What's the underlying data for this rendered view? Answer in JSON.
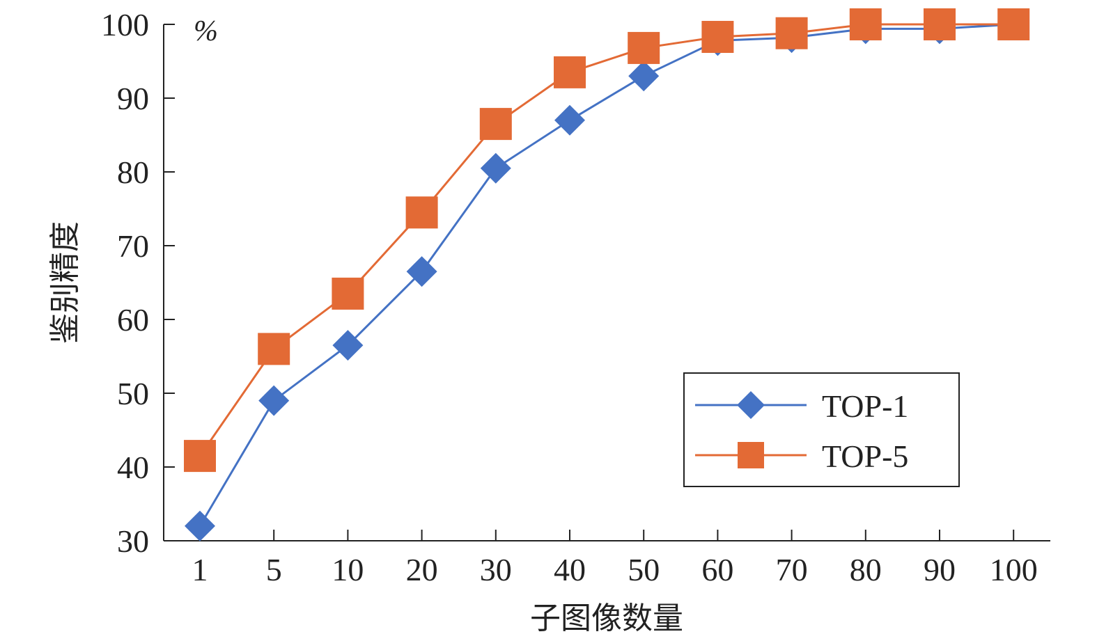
{
  "chart_data": {
    "type": "line",
    "categories": [
      "1",
      "5",
      "10",
      "20",
      "30",
      "40",
      "50",
      "60",
      "70",
      "80",
      "90",
      "100"
    ],
    "series": [
      {
        "name": "TOP-1",
        "values": [
          32,
          49,
          56.5,
          66.5,
          80.5,
          87,
          93,
          97.8,
          98.2,
          99.4,
          99.4,
          100
        ],
        "color": "#4472C4",
        "marker": "diamond"
      },
      {
        "name": "TOP-5",
        "values": [
          41.5,
          56,
          63.5,
          74.5,
          86.5,
          93.5,
          96.8,
          98.3,
          98.8,
          100,
          100,
          100
        ],
        "color": "#E36A35",
        "marker": "square"
      }
    ],
    "xlabel": "子图像数量",
    "ylabel": "鉴别精度",
    "yunit": "%",
    "ylim": [
      30,
      100
    ],
    "yticks": [
      30,
      40,
      50,
      60,
      70,
      80,
      90,
      100
    ],
    "grid": false,
    "legend_position": "bottom-right"
  }
}
